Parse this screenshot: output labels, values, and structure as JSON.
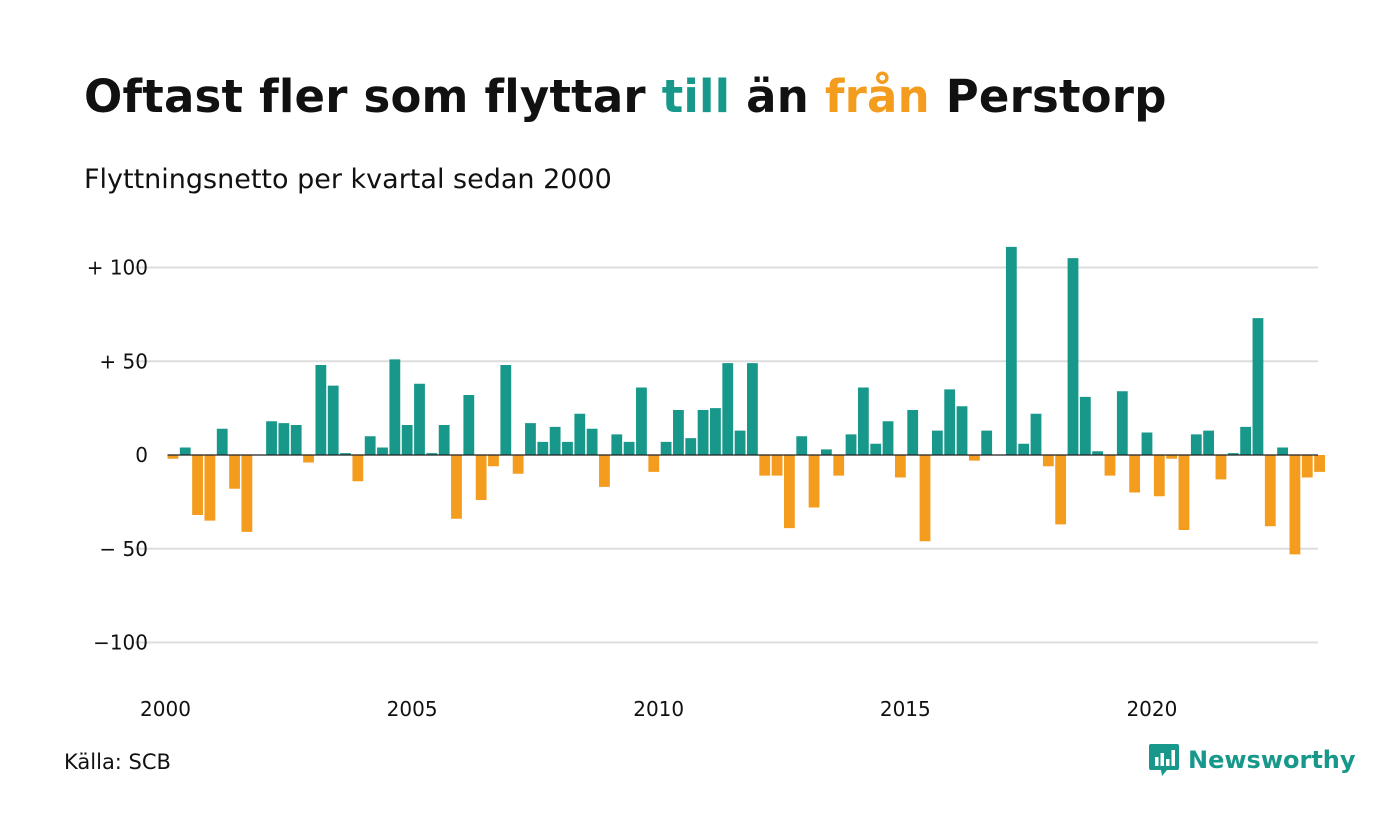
{
  "header": {
    "title_part1": "Oftast fler som flyttar ",
    "title_till": "till",
    "title_part2": " än ",
    "title_fran": "från",
    "title_part3": " Perstorp",
    "subtitle": "Flyttningsnetto per kvartal sedan 2000"
  },
  "footer": {
    "source": "Källa: SCB",
    "brand": "Newsworthy",
    "brand_icon": "newsworthy-logo-icon"
  },
  "colors": {
    "positive": "#17988a",
    "negative": "#f39c1d",
    "grid": "#dddddd",
    "zero_line": "#222222"
  },
  "chart_data": {
    "type": "bar",
    "title": "Oftast fler som flyttar till än från Perstorp",
    "subtitle": "Flyttningsnetto per kvartal sedan 2000",
    "xlabel": "",
    "ylabel": "",
    "x_start": "2000 Q1",
    "frequency": "quarter",
    "ylim": [
      -120,
      120
    ],
    "y_ticks": [
      100,
      50,
      0,
      -50,
      -100
    ],
    "y_tick_labels": [
      "+ 100",
      "+  50",
      "0",
      "− 50",
      "−100"
    ],
    "x_ticks": [
      "2000",
      "2005",
      "2010",
      "2015",
      "2020"
    ],
    "grid": true,
    "legend": "none",
    "values": [
      -2,
      4,
      -32,
      -35,
      14,
      -18,
      -41,
      0,
      18,
      17,
      16,
      -4,
      48,
      37,
      1,
      -14,
      10,
      4,
      51,
      16,
      38,
      1,
      16,
      -34,
      32,
      -24,
      -6,
      48,
      -10,
      17,
      7,
      15,
      7,
      22,
      14,
      -17,
      11,
      7,
      36,
      -9,
      7,
      24,
      9,
      24,
      25,
      49,
      13,
      49,
      -11,
      -11,
      -39,
      10,
      -28,
      3,
      -11,
      11,
      36,
      6,
      18,
      -12,
      24,
      -46,
      13,
      35,
      26,
      -3,
      13,
      0,
      111,
      6,
      22,
      -6,
      -37,
      105,
      31,
      2,
      -11,
      34,
      -20,
      12,
      -22,
      -2,
      -40,
      11,
      13,
      -13,
      1,
      15,
      73,
      -38,
      4,
      -53,
      -12,
      -9
    ]
  }
}
